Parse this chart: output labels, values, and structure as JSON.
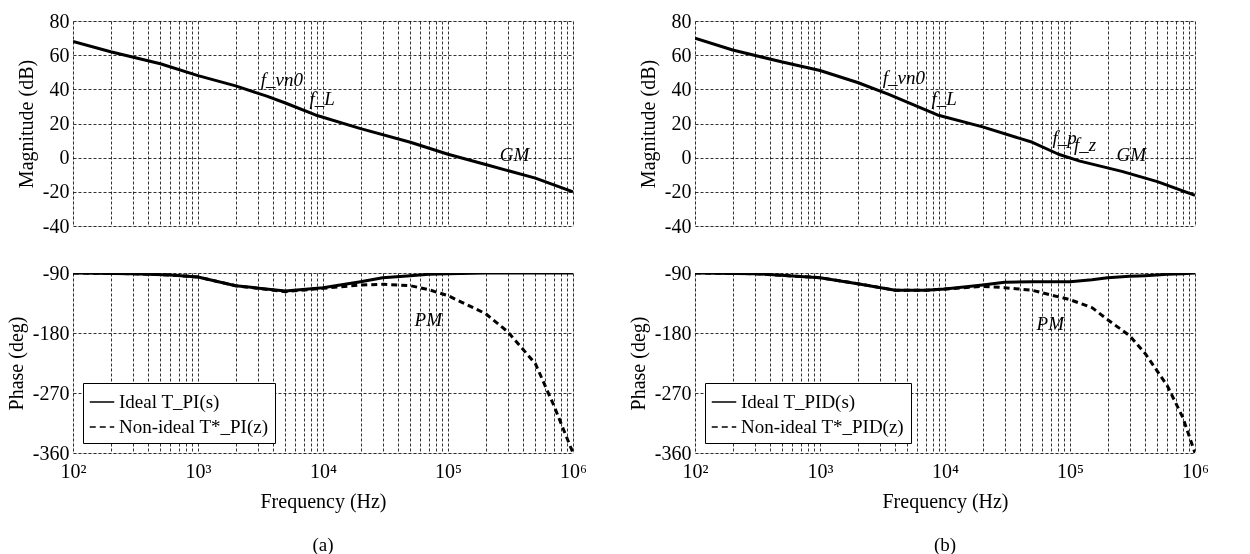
{
  "chart_data": [
    {
      "type": "line",
      "ylabel": "Magnitude (dB)",
      "xlim": [
        100,
        1000000
      ],
      "ylim": [
        -40,
        80
      ],
      "log": "x",
      "grid": true,
      "tick_labels": "y",
      "xticks": [
        100,
        {
          "value": 200,
          "label": null
        },
        {
          "value": 300,
          "label": null
        },
        {
          "value": 400,
          "label": null
        },
        {
          "value": 500,
          "label": null
        },
        {
          "value": 600,
          "label": null
        },
        {
          "value": 700,
          "label": null
        },
        {
          "value": 800,
          "label": null
        },
        {
          "value": 900,
          "label": null
        },
        1000,
        {
          "value": 2000,
          "label": null
        },
        {
          "value": 3000,
          "label": null
        },
        {
          "value": 4000,
          "label": null
        },
        {
          "value": 5000,
          "label": null
        },
        {
          "value": 6000,
          "label": null
        },
        {
          "value": 7000,
          "label": null
        },
        {
          "value": 8000,
          "label": null
        },
        {
          "value": 9000,
          "label": null
        },
        10000,
        {
          "value": 20000,
          "label": null
        },
        {
          "value": 30000,
          "label": null
        },
        {
          "value": 40000,
          "label": null
        },
        {
          "value": 50000,
          "label": null
        },
        {
          "value": 60000,
          "label": null
        },
        {
          "value": 70000,
          "label": null
        },
        {
          "value": 80000,
          "label": null
        },
        {
          "value": 90000,
          "label": null
        },
        100000,
        {
          "value": 200000,
          "label": null
        },
        {
          "value": 300000,
          "label": null
        },
        {
          "value": 400000,
          "label": null
        },
        {
          "value": 500000,
          "label": null
        },
        {
          "value": 600000,
          "label": null
        },
        {
          "value": 700000,
          "label": null
        },
        {
          "value": 800000,
          "label": null
        },
        {
          "value": 900000,
          "label": null
        },
        1000000
      ],
      "yticks": [
        -40,
        -20,
        0,
        20,
        40,
        60,
        80
      ],
      "x": [
        100,
        200,
        500,
        1000,
        2000,
        3550,
        5000,
        8700,
        20000,
        50000,
        100000,
        200000,
        500000,
        1000000
      ],
      "series": [
        {
          "color": "#000000",
          "line_style": "solid",
          "values": [
            68,
            62,
            55,
            48,
            42,
            36,
            32,
            25,
            17,
            9,
            2,
            -4,
            -12,
            -20
          ]
        }
      ],
      "annotations": [
        {
          "text": "f_vn0",
          "x": 3550,
          "y": 36
        },
        {
          "text": "f_L",
          "x": 8700,
          "y": 25
        },
        {
          "text": "GM",
          "x": 290000,
          "y": -8
        }
      ]
    },
    {
      "type": "line",
      "xlabel": "Frequency  (Hz)",
      "ylabel": "Phase (deg)",
      "xlim": [
        100,
        1000000
      ],
      "ylim": [
        -360,
        -90
      ],
      "log": "x",
      "grid": true,
      "legend": "bottom left",
      "xticks": [
        {
          "value": 100,
          "label": "10²"
        },
        {
          "value": 200,
          "label": null
        },
        {
          "value": 300,
          "label": null
        },
        {
          "value": 400,
          "label": null
        },
        {
          "value": 500,
          "label": null
        },
        {
          "value": 600,
          "label": null
        },
        {
          "value": 700,
          "label": null
        },
        {
          "value": 800,
          "label": null
        },
        {
          "value": 900,
          "label": null
        },
        {
          "value": 1000,
          "label": "10³"
        },
        {
          "value": 2000,
          "label": null
        },
        {
          "value": 3000,
          "label": null
        },
        {
          "value": 4000,
          "label": null
        },
        {
          "value": 5000,
          "label": null
        },
        {
          "value": 6000,
          "label": null
        },
        {
          "value": 7000,
          "label": null
        },
        {
          "value": 8000,
          "label": null
        },
        {
          "value": 9000,
          "label": null
        },
        {
          "value": 10000,
          "label": "10⁴"
        },
        {
          "value": 20000,
          "label": null
        },
        {
          "value": 30000,
          "label": null
        },
        {
          "value": 40000,
          "label": null
        },
        {
          "value": 50000,
          "label": null
        },
        {
          "value": 60000,
          "label": null
        },
        {
          "value": 70000,
          "label": null
        },
        {
          "value": 80000,
          "label": null
        },
        {
          "value": 90000,
          "label": null
        },
        {
          "value": 100000,
          "label": "10⁵"
        },
        {
          "value": 200000,
          "label": null
        },
        {
          "value": 300000,
          "label": null
        },
        {
          "value": 400000,
          "label": null
        },
        {
          "value": 500000,
          "label": null
        },
        {
          "value": 600000,
          "label": null
        },
        {
          "value": 700000,
          "label": null
        },
        {
          "value": 800000,
          "label": null
        },
        {
          "value": 900000,
          "label": null
        },
        {
          "value": 1000000,
          "label": "10⁶"
        }
      ],
      "yticks": [
        -360,
        -270,
        -180,
        -90
      ],
      "x": [
        100,
        300,
        600,
        1000,
        2000,
        5000,
        10000,
        20000,
        30000,
        50000,
        70000,
        100000,
        200000,
        300000,
        500000,
        700000,
        1000000
      ],
      "series": [
        {
          "name": "Ideal T_PI(s)",
          "color": "#000000",
          "line_style": "solid",
          "values": [
            -90,
            -91,
            -93,
            -96,
            -109,
            -117,
            -112,
            -103,
            -97,
            -94,
            -92,
            -91,
            -90,
            -90,
            -90,
            -90,
            -90
          ]
        },
        {
          "name": "Non-ideal T*_PI(z)",
          "color": "#000000",
          "line_style": "dashed",
          "values": [
            -90,
            -91,
            -93,
            -96,
            -109,
            -118,
            -113,
            -108,
            -107,
            -109,
            -115,
            -124,
            -151,
            -178,
            -226,
            -288,
            -360
          ]
        }
      ],
      "annotations": [
        {
          "text": "PM",
          "x": 100000,
          "y": -124
        },
        "(a)"
      ]
    },
    {
      "type": "line",
      "ylabel": "Magnitude (dB)",
      "xlim": [
        100,
        1000000
      ],
      "ylim": [
        -40,
        80
      ],
      "log": "x",
      "grid": true,
      "tick_labels": "y",
      "xticks": [
        100,
        {
          "value": 200,
          "label": null
        },
        {
          "value": 300,
          "label": null
        },
        {
          "value": 400,
          "label": null
        },
        {
          "value": 500,
          "label": null
        },
        {
          "value": 600,
          "label": null
        },
        {
          "value": 700,
          "label": null
        },
        {
          "value": 800,
          "label": null
        },
        {
          "value": 900,
          "label": null
        },
        1000,
        {
          "value": 2000,
          "label": null
        },
        {
          "value": 3000,
          "label": null
        },
        {
          "value": 4000,
          "label": null
        },
        {
          "value": 5000,
          "label": null
        },
        {
          "value": 6000,
          "label": null
        },
        {
          "value": 7000,
          "label": null
        },
        {
          "value": 8000,
          "label": null
        },
        {
          "value": 9000,
          "label": null
        },
        10000,
        {
          "value": 20000,
          "label": null
        },
        {
          "value": 30000,
          "label": null
        },
        {
          "value": 40000,
          "label": null
        },
        {
          "value": 50000,
          "label": null
        },
        {
          "value": 60000,
          "label": null
        },
        {
          "value": 70000,
          "label": null
        },
        {
          "value": 80000,
          "label": null
        },
        {
          "value": 90000,
          "label": null
        },
        100000,
        {
          "value": 200000,
          "label": null
        },
        {
          "value": 300000,
          "label": null
        },
        {
          "value": 400000,
          "label": null
        },
        {
          "value": 500000,
          "label": null
        },
        {
          "value": 600000,
          "label": null
        },
        {
          "value": 700000,
          "label": null
        },
        {
          "value": 800000,
          "label": null
        },
        {
          "value": 900000,
          "label": null
        },
        1000000
      ],
      "yticks": [
        -40,
        -20,
        0,
        20,
        40,
        60,
        80
      ],
      "x": [
        100,
        200,
        500,
        1000,
        2000,
        3550,
        8700,
        20000,
        50000,
        81000,
        120000,
        260000,
        500000,
        1000000
      ],
      "series": [
        {
          "color": "#000000",
          "line_style": "solid",
          "values": [
            70,
            63,
            56,
            51,
            44,
            37,
            25,
            18,
            9,
            2,
            -2,
            -8,
            -14,
            -22
          ]
        }
      ],
      "annotations": [
        {
          "text": "f_vn0",
          "x": 3550,
          "y": 37
        },
        {
          "text": "f_L",
          "x": 8700,
          "y": 25
        },
        {
          "text": "f_p",
          "x": 81000,
          "y": 2
        },
        {
          "text": "f_z",
          "x": 120000,
          "y": -2
        },
        {
          "text": "GM",
          "x": 263000,
          "y": -8
        }
      ]
    },
    {
      "type": "line",
      "xlabel": "Frequency  (Hz)",
      "ylabel": "Phase (deg)",
      "xlim": [
        100,
        1000000
      ],
      "ylim": [
        -360,
        -90
      ],
      "log": "x",
      "grid": true,
      "legend": "bottom left",
      "xticks": [
        {
          "value": 100,
          "label": "10²"
        },
        {
          "value": 200,
          "label": null
        },
        {
          "value": 300,
          "label": null
        },
        {
          "value": 400,
          "label": null
        },
        {
          "value": 500,
          "label": null
        },
        {
          "value": 600,
          "label": null
        },
        {
          "value": 700,
          "label": null
        },
        {
          "value": 800,
          "label": null
        },
        {
          "value": 900,
          "label": null
        },
        {
          "value": 1000,
          "label": "10³"
        },
        {
          "value": 2000,
          "label": null
        },
        {
          "value": 3000,
          "label": null
        },
        {
          "value": 4000,
          "label": null
        },
        {
          "value": 5000,
          "label": null
        },
        {
          "value": 6000,
          "label": null
        },
        {
          "value": 7000,
          "label": null
        },
        {
          "value": 8000,
          "label": null
        },
        {
          "value": 9000,
          "label": null
        },
        {
          "value": 10000,
          "label": "10⁴"
        },
        {
          "value": 20000,
          "label": null
        },
        {
          "value": 30000,
          "label": null
        },
        {
          "value": 40000,
          "label": null
        },
        {
          "value": 50000,
          "label": null
        },
        {
          "value": 60000,
          "label": null
        },
        {
          "value": 70000,
          "label": null
        },
        {
          "value": 80000,
          "label": null
        },
        {
          "value": 90000,
          "label": null
        },
        {
          "value": 100000,
          "label": "10⁵"
        },
        {
          "value": 200000,
          "label": null
        },
        {
          "value": 300000,
          "label": null
        },
        {
          "value": 400000,
          "label": null
        },
        {
          "value": 500000,
          "label": null
        },
        {
          "value": 600000,
          "label": null
        },
        {
          "value": 700000,
          "label": null
        },
        {
          "value": 800000,
          "label": null
        },
        {
          "value": 900000,
          "label": null
        },
        {
          "value": 1000000,
          "label": "10⁶"
        }
      ],
      "yticks": [
        -360,
        -270,
        -180,
        -90
      ],
      "x": [
        100,
        300,
        1000,
        2000,
        4000,
        7000,
        10000,
        20000,
        30000,
        50000,
        100000,
        150000,
        200000,
        300000,
        400000,
        600000,
        800000,
        1000000
      ],
      "series": [
        {
          "name": "Ideal T_PID(s)",
          "color": "#000000",
          "line_style": "solid",
          "values": [
            -90,
            -91,
            -97,
            -106,
            -116,
            -116,
            -114,
            -108,
            -104,
            -103,
            -103,
            -100,
            -97,
            -95,
            -94,
            -92,
            -91,
            -90
          ]
        },
        {
          "name": "Non-ideal T*_PID(z)",
          "color": "#000000",
          "line_style": "dashed",
          "values": [
            -90,
            -91,
            -97,
            -106,
            -116,
            -116,
            -114,
            -110,
            -112,
            -116,
            -130,
            -142,
            -160,
            -184,
            -211,
            -259,
            -307,
            -360
          ]
        }
      ],
      "annotations": [
        {
          "text": "PM",
          "x": 100000,
          "y": -130
        },
        "(b)"
      ]
    }
  ]
}
